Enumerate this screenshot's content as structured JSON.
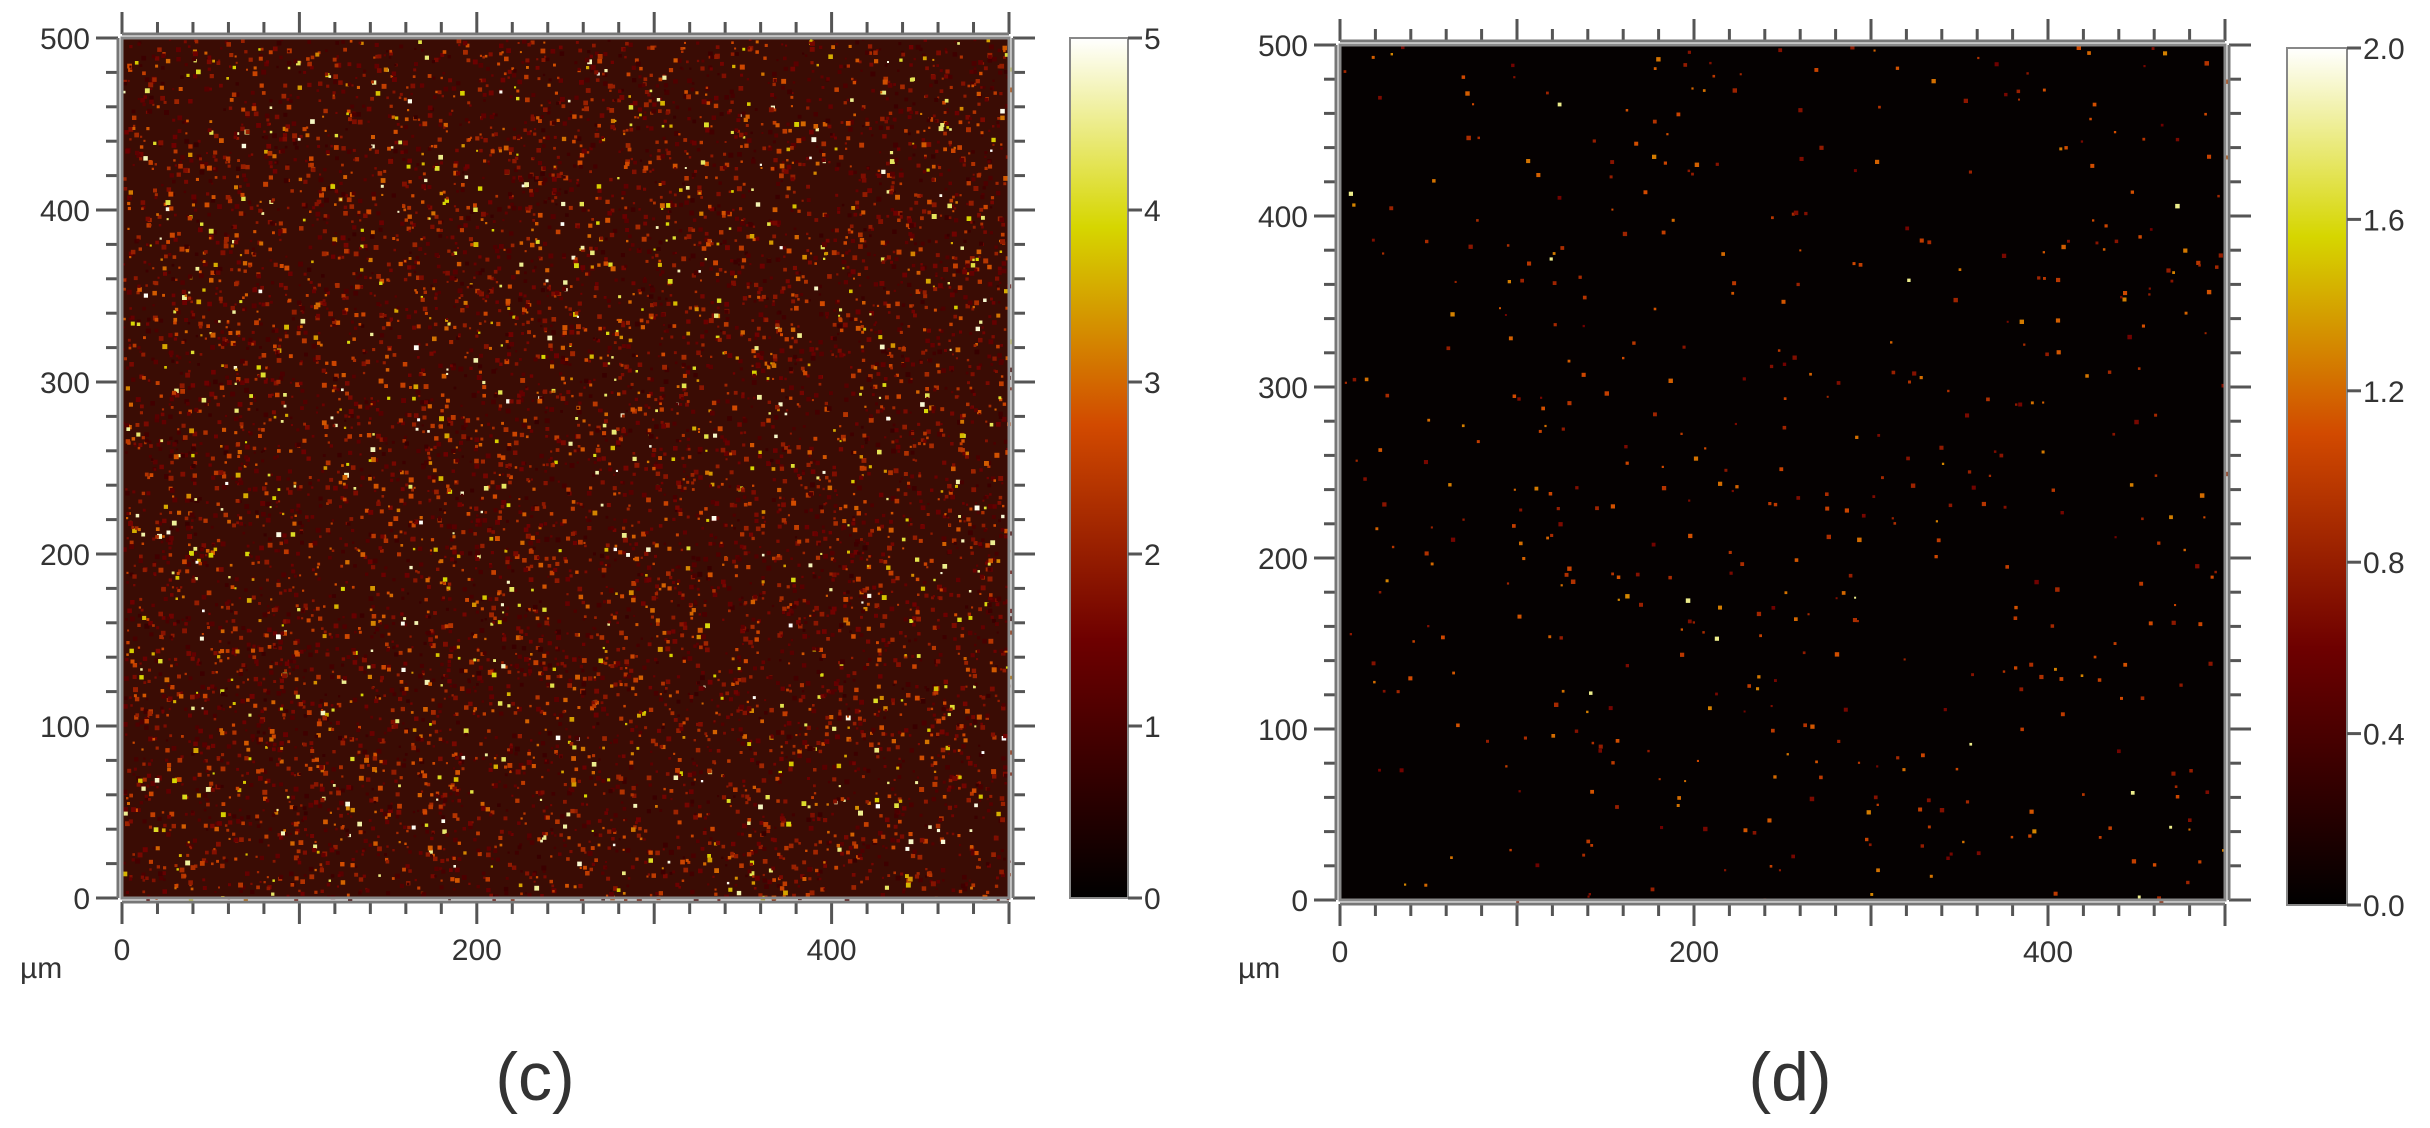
{
  "chart_data": [
    {
      "type": "heatmap",
      "panel_label": "(c)",
      "x_unit": "µm",
      "xlim": [
        0,
        500
      ],
      "ylim": [
        0,
        500
      ],
      "x_ticks": [
        0,
        200,
        400
      ],
      "y_ticks": [
        0,
        100,
        200,
        300,
        400,
        500
      ],
      "colorbar": {
        "range": [
          0,
          5
        ],
        "ticks": [
          "0",
          "1",
          "2",
          "3",
          "4",
          "5"
        ],
        "colormap": [
          "#000000",
          "#6e0000",
          "#d24a00",
          "#d6d600",
          "#ffffff"
        ]
      },
      "field": {
        "background": "#3a0c04",
        "bright_point_density": "high",
        "mean_level": 0.6
      }
    },
    {
      "type": "heatmap",
      "panel_label": "(d)",
      "x_unit": "µm",
      "xlim": [
        0,
        500
      ],
      "ylim": [
        0,
        500
      ],
      "x_ticks": [
        0,
        200,
        400
      ],
      "y_ticks": [
        0,
        100,
        200,
        300,
        400,
        500
      ],
      "colorbar": {
        "range": [
          0,
          2
        ],
        "ticks": [
          "0.0",
          "0.4",
          "0.8",
          "1.2",
          "1.6",
          "2.0"
        ],
        "colormap": [
          "#000000",
          "#6e0000",
          "#d24a00",
          "#d6d600",
          "#ffffff"
        ]
      },
      "field": {
        "background": "#050101",
        "bright_point_density": "sparse",
        "mean_level": 0.02
      }
    }
  ]
}
